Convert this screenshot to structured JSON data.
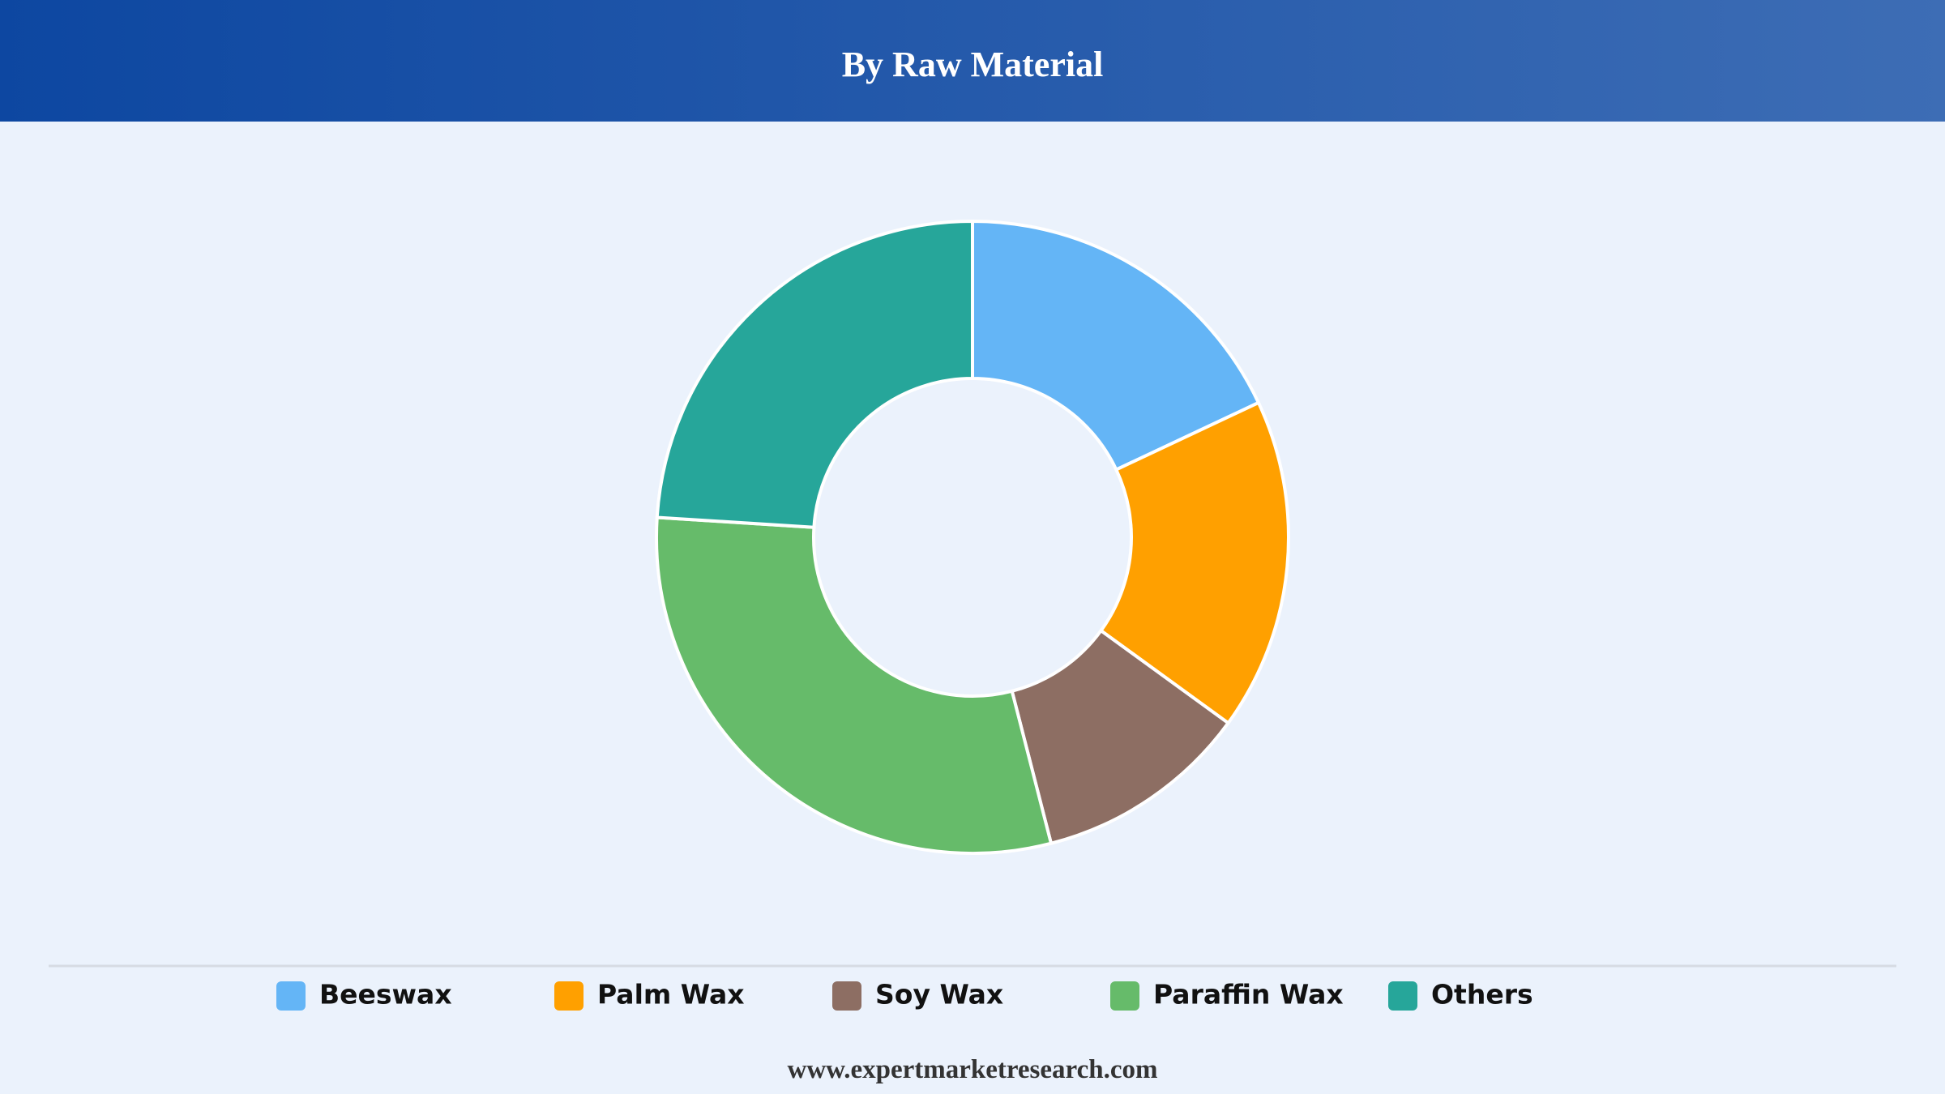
{
  "chart_data": {
    "type": "pie",
    "title": "By Raw Material",
    "categories": [
      "Beeswax",
      "Palm Wax",
      "Soy Wax",
      "Paraffin Wax",
      "Others"
    ],
    "values": [
      18,
      17,
      11,
      30,
      24
    ],
    "colors": [
      "#64b5f6",
      "#ffa000",
      "#8d6e63",
      "#66bb6a",
      "#26a69a"
    ],
    "legend": "bottom"
  },
  "footer": "www.expertmarketresearch.com"
}
